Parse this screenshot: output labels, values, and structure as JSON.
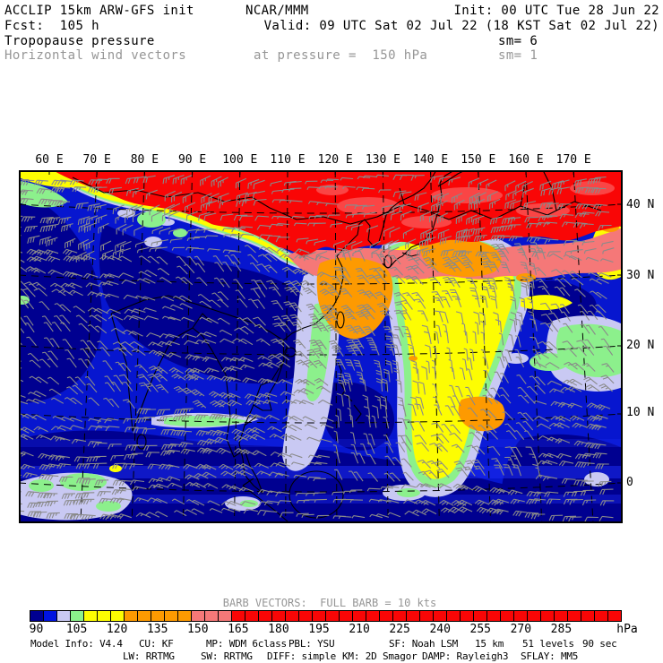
{
  "header": {
    "product": "ACCLIP 15km ARW-GFS init",
    "org": "NCAR/MMM",
    "init": "Init: 00 UTC Tue 28 Jun 22",
    "fcst": "Fcst:  105 h",
    "valid": "Valid: 09 UTC Sat 02 Jul 22 (18 KST Sat 02 Jul 22)",
    "field": "Tropopause pressure",
    "sm6": "sm= 6",
    "vectors": "Horizontal wind vectors",
    "level": "at pressure =  150 hPa",
    "sm1": "sm= 1"
  },
  "axes": {
    "longitude_labels": [
      "60 E",
      "70 E",
      "80 E",
      "90 E",
      "100 E",
      "110 E",
      "120 E",
      "130 E",
      "140 E",
      "150 E",
      "160 E",
      "170 E"
    ],
    "latitude_labels": [
      "40 N",
      "30 N",
      "20 N",
      "10 N",
      "0"
    ]
  },
  "colorbar": {
    "title": "BARB VECTORS:  FULL BARB = 10 kts",
    "unit": "hPa",
    "tick_labels": [
      "90",
      "105",
      "120",
      "135",
      "150",
      "165",
      "180",
      "195",
      "210",
      "225",
      "240",
      "255",
      "270",
      "285"
    ],
    "cell_step_hpa": 5,
    "cell_count": 44,
    "first_value": 90,
    "stops": [
      {
        "upto": 95,
        "color": "#000090"
      },
      {
        "upto": 100,
        "color": "#0013e0"
      },
      {
        "upto": 105,
        "color": "#c9c9f3"
      },
      {
        "upto": 110,
        "color": "#8cf08c"
      },
      {
        "upto": 125,
        "color": "#fdfd02"
      },
      {
        "upto": 150,
        "color": "#fd9a01"
      },
      {
        "upto": 165,
        "color": "#f57878"
      },
      {
        "upto": 999,
        "color": "#f90606"
      }
    ]
  },
  "footer": {
    "line1": [
      "Model Info: V4.4",
      "CU: KF",
      "MP: WDM 6class",
      "PBL: YSU",
      "SF: Noah LSM",
      "15 km",
      "51 levels",
      "90 sec"
    ],
    "line2": [
      "LW: RRTMG",
      "SW: RRTMG",
      "DIFF: simple",
      "KM: 2D Smagor",
      "DAMP: Rayleigh3",
      "SFLAY: MM5"
    ]
  },
  "palette": {
    "navy": "#000090",
    "blue": "#0716cf",
    "blue_light": "#1b2bf2",
    "periwinkle": "#c9c9f3",
    "green": "#8cf08c",
    "yellow": "#fdfd02",
    "orange": "#fd9a01",
    "salmon": "#f57878",
    "red": "#f90606",
    "red_light": "#fb5050",
    "barb_gray": "#8a8a8a",
    "text_gray": "#969696"
  },
  "chart_data": {
    "type": "heatmap",
    "title": "Tropopause pressure (hPa) with horizontal wind vectors at 150 hPa",
    "x_ticks": [
      "60 E",
      "70 E",
      "80 E",
      "90 E",
      "100 E",
      "110 E",
      "120 E",
      "130 E",
      "140 E",
      "150 E",
      "160 E",
      "170 E"
    ],
    "y_ticks": [
      "40 N",
      "30 N",
      "20 N",
      "10 N",
      "0"
    ],
    "colorbar_ticks_hpa": [
      90,
      105,
      120,
      135,
      150,
      165,
      180,
      195,
      210,
      225,
      240,
      255,
      270,
      285
    ],
    "colorbar_unit": "hPa",
    "legend_note": "BARB VECTORS:  FULL BARB = 10 kts",
    "field_summary": "High tropopause pressure (red, >165 hPa) covers the region north of ~40N; very low values (navy/blue, 90-100 hPa) over the tropics and central Asia; an orange band (125-150 hPa) lies over Korea with a yellow region (110-125 hPa) over Japan extending south, fringed by green (105-110) and periwinkle (100-105)."
  }
}
